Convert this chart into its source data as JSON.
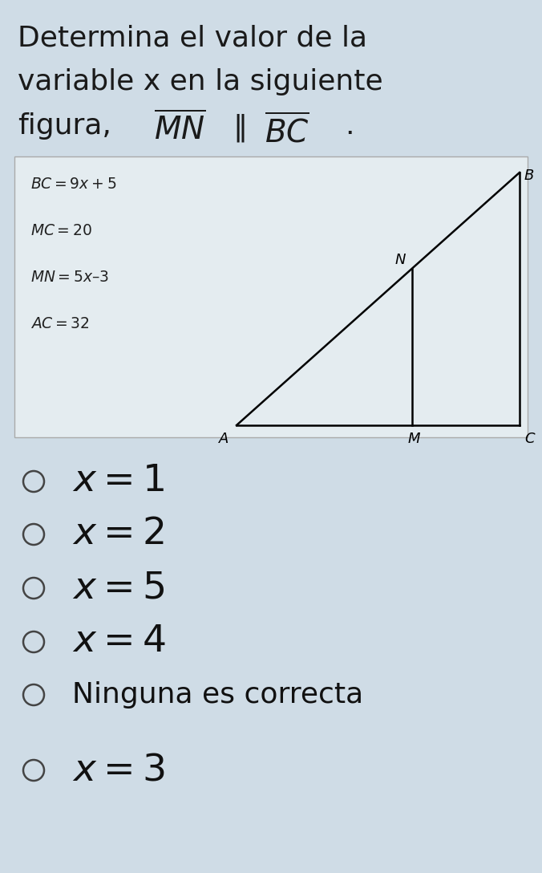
{
  "bg_color": "#cfdce6",
  "title_lines": [
    "Determina el valor de la",
    "variable x en la siguiente"
  ],
  "title_fontsize": 26,
  "title_color": "#1a1a1a",
  "box_bg": "#e8eef2",
  "box_equations": [
    "BC = 9x + 5",
    "MC = 20",
    "MN = 5x – 3",
    "AC = 32"
  ],
  "options": [
    "$x=1$",
    "$x=2$",
    "$x=5$",
    "$x=4$",
    "Ninguna es correcta",
    "$x=3$"
  ],
  "option_fontsize": 34,
  "ninguna_fontsize": 26,
  "option_color": "#111111"
}
